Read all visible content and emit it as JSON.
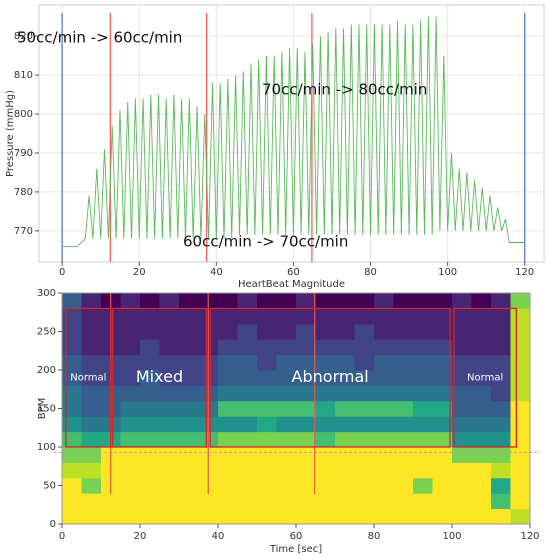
{
  "chart_data": [
    {
      "type": "line",
      "ylabel": "Pressure (mmHg)",
      "xlabel": "HeartBeat Magnitude",
      "annotations": [
        "50cc/min -> 60cc/min",
        "70cc/min -> 80cc/min",
        "60cc/min -> 70cc/min"
      ],
      "xlim": [
        -6,
        125
      ],
      "ylim": [
        762,
        828
      ],
      "xticks": [
        0,
        20,
        40,
        60,
        80,
        100,
        120
      ],
      "yticks": [
        770,
        780,
        790,
        800,
        810,
        820
      ],
      "grid": true,
      "markers": [
        {
          "x": 0,
          "color": "#4a74c9"
        },
        {
          "x": 120,
          "color": "#4a74c9"
        },
        {
          "x": 12.5,
          "color": "#e8574f"
        },
        {
          "x": 37.5,
          "color": "#e8574f"
        },
        {
          "x": 64.8,
          "color": "#e8574f"
        }
      ],
      "series": [
        {
          "color": "#5cb85c",
          "x": [
            0,
            1,
            2,
            3,
            4,
            5,
            6,
            7,
            8,
            9,
            10,
            11,
            12,
            13,
            14,
            15,
            16,
            17,
            18,
            19,
            20,
            21,
            22,
            23,
            24,
            25,
            26,
            27,
            28,
            29,
            30,
            31,
            32,
            33,
            34,
            35,
            36,
            37,
            38,
            39,
            40,
            41,
            42,
            43,
            44,
            45,
            46,
            47,
            48,
            49,
            50,
            51,
            52,
            53,
            54,
            55,
            56,
            57,
            58,
            59,
            60,
            61,
            62,
            63,
            64,
            65,
            66,
            67,
            68,
            69,
            70,
            71,
            72,
            73,
            74,
            75,
            76,
            77,
            78,
            79,
            80,
            81,
            82,
            83,
            84,
            85,
            86,
            87,
            88,
            89,
            90,
            91,
            92,
            93,
            94,
            95,
            96,
            97,
            98,
            99,
            100,
            101,
            102,
            103,
            104,
            105,
            106,
            107,
            108,
            109,
            110,
            111,
            112,
            113,
            114,
            115,
            116,
            117,
            118,
            119,
            120
          ],
          "values": [
            766,
            766,
            766,
            766,
            766,
            767,
            768,
            779,
            768,
            786,
            768,
            791,
            768,
            797,
            768,
            801,
            768,
            803,
            768,
            804,
            768,
            804,
            768,
            805,
            768,
            805,
            768,
            804,
            768,
            805,
            768,
            804,
            768,
            804,
            768,
            802,
            768,
            800,
            768,
            808,
            768,
            808,
            768,
            809,
            768,
            810,
            769,
            811,
            769,
            813,
            769,
            814,
            769,
            815,
            769,
            815,
            769,
            816,
            769,
            817,
            769,
            817,
            769,
            816,
            769,
            818,
            769,
            820,
            769,
            821,
            769,
            822,
            769,
            822,
            769,
            823,
            769,
            823,
            769,
            823,
            769,
            823,
            769,
            823,
            769,
            823,
            769,
            824,
            769,
            823,
            769,
            823,
            769,
            824,
            769,
            825,
            769,
            825,
            770,
            815,
            770,
            790,
            770,
            786,
            770,
            785,
            770,
            783,
            770,
            781,
            770,
            779,
            770,
            776,
            770,
            773,
            767,
            767,
            767,
            767,
            767
          ]
        }
      ]
    },
    {
      "type": "heatmap",
      "ylabel": "BPM",
      "xlabel": "Time [sec]",
      "xlim": [
        0,
        120
      ],
      "ylim": [
        0,
        300
      ],
      "xticks": [
        0,
        20,
        40,
        60,
        80,
        100,
        120
      ],
      "yticks": [
        0,
        50,
        100,
        150,
        200,
        250,
        300
      ],
      "zlim": [
        0,
        10
      ],
      "colorscale": [
        "#440154",
        "#482475",
        "#414487",
        "#355f8d",
        "#2a788e",
        "#21918c",
        "#22a884",
        "#44bf70",
        "#7ad151",
        "#bddf26",
        "#fde725"
      ],
      "hline": 93,
      "markers": [
        {
          "x": 12.5,
          "color": "#e8574f"
        },
        {
          "x": 37.5,
          "color": "#e8574f"
        },
        {
          "x": 64.8,
          "color": "#e8574f"
        }
      ],
      "regions": [
        {
          "label": "Normal",
          "x": [
            1,
            12.5
          ],
          "y": [
            100,
            280
          ]
        },
        {
          "label": "Mixed",
          "x": [
            13,
            37
          ],
          "y": [
            100,
            280
          ]
        },
        {
          "label": "Abnormal",
          "x": [
            38,
            99.5
          ],
          "y": [
            100,
            280
          ]
        },
        {
          "label": "Normal",
          "x": [
            100.5,
            116.5
          ],
          "y": [
            100,
            280
          ]
        }
      ],
      "xbins": [
        0,
        5,
        10,
        15,
        20,
        25,
        30,
        35,
        40,
        45,
        50,
        55,
        60,
        65,
        70,
        75,
        80,
        85,
        90,
        95,
        100,
        105,
        110,
        115,
        120
      ],
      "ybins": [
        0,
        20,
        40,
        60,
        80,
        100,
        120,
        140,
        160,
        180,
        200,
        220,
        240,
        260,
        280,
        300
      ],
      "z": [
        [
          10,
          10,
          10,
          10,
          10,
          10,
          10,
          10,
          10,
          10,
          10,
          10,
          10,
          10,
          10,
          10,
          10,
          10,
          10,
          10,
          10,
          10,
          10,
          9
        ],
        [
          10,
          10,
          10,
          10,
          10,
          10,
          10,
          10,
          10,
          10,
          10,
          10,
          10,
          10,
          10,
          10,
          10,
          10,
          10,
          10,
          10,
          10,
          7,
          10
        ],
        [
          10,
          8,
          10,
          10,
          10,
          10,
          10,
          10,
          10,
          10,
          10,
          10,
          10,
          10,
          10,
          10,
          10,
          10,
          8,
          10,
          10,
          10,
          6,
          10
        ],
        [
          9,
          9,
          10,
          10,
          10,
          10,
          10,
          10,
          10,
          10,
          10,
          10,
          10,
          10,
          10,
          10,
          10,
          10,
          10,
          10,
          10,
          10,
          9,
          10
        ],
        [
          8,
          8,
          10,
          10,
          10,
          10,
          10,
          10,
          10,
          10,
          10,
          10,
          10,
          10,
          10,
          10,
          10,
          10,
          10,
          10,
          8,
          8,
          8,
          10
        ],
        [
          7,
          6,
          6,
          7,
          7,
          7,
          7,
          7,
          8,
          8,
          8,
          8,
          8,
          7,
          8,
          8,
          8,
          8,
          8,
          8,
          5,
          5,
          5,
          10
        ],
        [
          5,
          4,
          4,
          5,
          5,
          5,
          5,
          5,
          5,
          5,
          6,
          5,
          5,
          5,
          5,
          5,
          5,
          5,
          5,
          5,
          4,
          4,
          4,
          10
        ],
        [
          4,
          3,
          3,
          4,
          4,
          4,
          4,
          4,
          7,
          7,
          7,
          7,
          7,
          6,
          7,
          7,
          7,
          7,
          6,
          6,
          3,
          3,
          3,
          10
        ],
        [
          4,
          3,
          3,
          3,
          3,
          3,
          3,
          3,
          4,
          4,
          4,
          4,
          4,
          4,
          4,
          4,
          4,
          4,
          4,
          4,
          3,
          3,
          2,
          9
        ],
        [
          3,
          2,
          2,
          2,
          3,
          2,
          2,
          2,
          3,
          3,
          3,
          3,
          3,
          3,
          3,
          3,
          3,
          3,
          3,
          3,
          2,
          2,
          2,
          9
        ],
        [
          3,
          2,
          2,
          2,
          2,
          2,
          2,
          2,
          3,
          3,
          2,
          3,
          3,
          3,
          3,
          2,
          3,
          3,
          3,
          3,
          2,
          2,
          2,
          9
        ],
        [
          2,
          1,
          1,
          1,
          2,
          1,
          1,
          1,
          2,
          2,
          2,
          2,
          2,
          2,
          2,
          2,
          2,
          2,
          2,
          2,
          1,
          1,
          1,
          9
        ],
        [
          2,
          1,
          1,
          1,
          1,
          1,
          1,
          1,
          1,
          2,
          1,
          1,
          2,
          1,
          1,
          2,
          1,
          1,
          1,
          1,
          1,
          1,
          1,
          9
        ],
        [
          2,
          1,
          1,
          1,
          1,
          1,
          1,
          1,
          1,
          1,
          1,
          1,
          1,
          1,
          1,
          1,
          1,
          1,
          1,
          1,
          1,
          1,
          1,
          9
        ],
        [
          3,
          1,
          0,
          1,
          0,
          1,
          0,
          0,
          0,
          1,
          0,
          0,
          1,
          0,
          0,
          0,
          1,
          0,
          0,
          0,
          1,
          0,
          1,
          8
        ]
      ]
    }
  ]
}
